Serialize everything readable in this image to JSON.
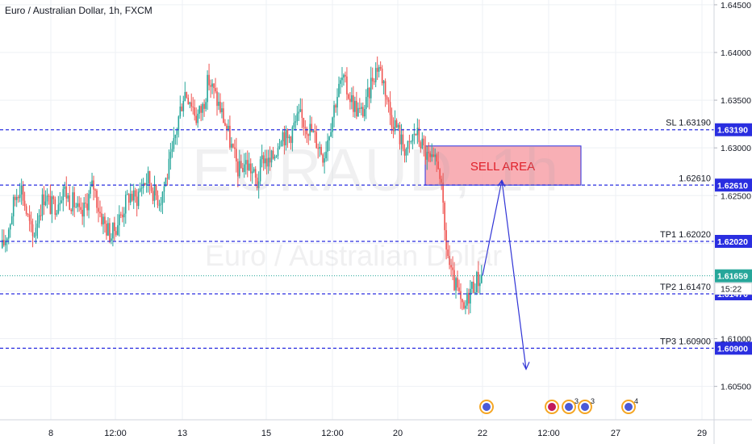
{
  "header": {
    "title": "Euro / Australian Dollar, 1h, FXCM"
  },
  "watermark": {
    "symbol": "EURAUD, 1h",
    "name": "Euro / Australian Dollar"
  },
  "colors": {
    "up": "#26a69a",
    "down": "#ef5350",
    "level": "#2a2ee0",
    "sell_fill": "#f7a1a8",
    "current": "#26a69a"
  },
  "chart_data": {
    "type": "candlestick",
    "y_axis": {
      "range": [
        1.6015,
        1.6455
      ],
      "ticks": [
        "1.60500",
        "1.61000",
        "1.62500",
        "1.63000",
        "1.63500",
        "1.64000",
        "1.64500"
      ]
    },
    "x_axis": {
      "ticks": [
        "8",
        "12:00",
        "13",
        "15",
        "12:00",
        "20",
        "22",
        "12:00",
        "27",
        "29"
      ]
    },
    "levels": [
      {
        "label": "SL 1.63190",
        "value": 1.6319,
        "tag": "1.63190"
      },
      {
        "label": "1.62610",
        "value": 1.6261,
        "tag": "1.62610"
      },
      {
        "label": "TP1 1.62020",
        "value": 1.6202,
        "tag": "1.62020"
      },
      {
        "label": "TP2 1.61470",
        "value": 1.6147,
        "tag": "1.61470"
      },
      {
        "label": "TP3 1.60900",
        "value": 1.609,
        "tag": "1.60900"
      }
    ],
    "current_price": {
      "value": 1.61659,
      "tag": "1.61659",
      "countdown": "15:22"
    },
    "sell_area": {
      "label": "SELL AREA",
      "low": 1.6261,
      "high": 1.6302
    },
    "projection": [
      1.6166,
      1.6266,
      1.6068
    ],
    "price_path": [
      1.6195,
      1.6215,
      1.6245,
      1.6263,
      1.6232,
      1.6205,
      1.6232,
      1.6252,
      1.6238,
      1.6242,
      1.6259,
      1.6246,
      1.6241,
      1.6225,
      1.6245,
      1.6262,
      1.6234,
      1.6218,
      1.6208,
      1.6222,
      1.6237,
      1.6252,
      1.6245,
      1.6262,
      1.6268,
      1.6253,
      1.6246,
      1.6268,
      1.6292,
      1.633,
      1.636,
      1.6352,
      1.6332,
      1.6342,
      1.6372,
      1.6356,
      1.634,
      1.632,
      1.6295,
      1.6275,
      1.6285,
      1.6278,
      1.6262,
      1.6292,
      1.6282,
      1.6296,
      1.6318,
      1.6308,
      1.6322,
      1.6332,
      1.6326,
      1.6317,
      1.6305,
      1.6292,
      1.6322,
      1.6352,
      1.6372,
      1.6358,
      1.6345,
      1.6335,
      1.6345,
      1.6375,
      1.6388,
      1.6366,
      1.6334,
      1.6322,
      1.6302,
      1.6298,
      1.6318,
      1.6306,
      1.629,
      1.6282,
      1.6285,
      1.6205,
      1.6165,
      1.615,
      1.6125,
      1.615,
      1.616,
      1.6166
    ]
  }
}
